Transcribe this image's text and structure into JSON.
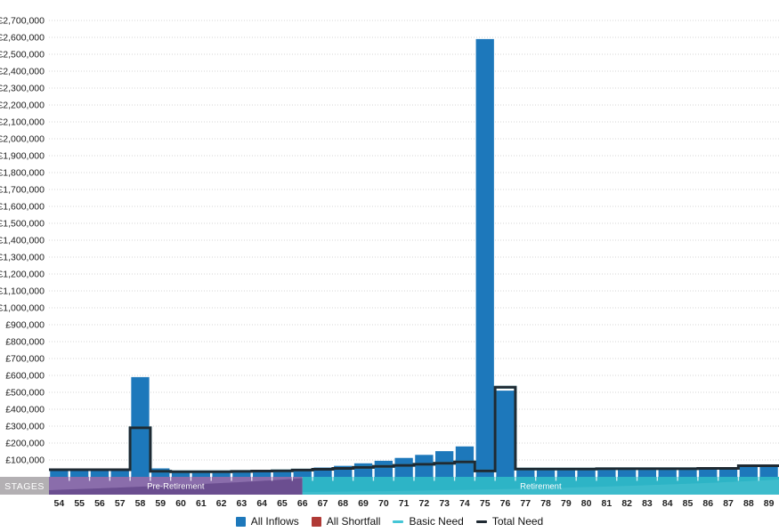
{
  "chart_data": {
    "type": "bar",
    "title": "",
    "x_label": "",
    "y_label": "",
    "x": [
      54,
      55,
      56,
      57,
      58,
      59,
      60,
      61,
      62,
      63,
      64,
      65,
      66,
      67,
      68,
      69,
      70,
      71,
      72,
      73,
      74,
      75,
      76,
      77,
      78,
      79,
      80,
      81,
      82,
      83,
      84,
      85,
      86,
      87,
      88,
      89
    ],
    "series": [
      {
        "name": "All Inflows",
        "type": "bar",
        "color": "#1d78bb",
        "values": [
          40000,
          40000,
          40000,
          40000,
          590000,
          50000,
          25000,
          25000,
          25000,
          27000,
          30000,
          34000,
          45000,
          55000,
          65000,
          80000,
          95000,
          112000,
          130000,
          152000,
          180000,
          2590000,
          510000,
          40000,
          40000,
          40000,
          40000,
          42000,
          42000,
          42000,
          44000,
          44000,
          46000,
          46000,
          60000,
          60000
        ]
      },
      {
        "name": "All Shortfall",
        "type": "bar",
        "color": "#b03a36",
        "values": [
          0,
          0,
          0,
          0,
          0,
          0,
          0,
          0,
          0,
          0,
          0,
          0,
          0,
          0,
          0,
          0,
          0,
          0,
          0,
          0,
          0,
          0,
          0,
          0,
          0,
          0,
          0,
          0,
          0,
          0,
          0,
          0,
          0,
          0,
          0,
          0
        ]
      },
      {
        "name": "Basic Need",
        "type": "step-line",
        "color": "#45c6d6",
        "values": [
          42000,
          42000,
          42000,
          42000,
          290000,
          33000,
          30000,
          30000,
          30000,
          32000,
          34000,
          36000,
          40000,
          45000,
          50000,
          56000,
          62000,
          68000,
          74000,
          80000,
          88000,
          35000,
          530000,
          46000,
          46000,
          46000,
          46000,
          48000,
          48000,
          48000,
          48000,
          48000,
          50000,
          50000,
          66000,
          66000
        ]
      },
      {
        "name": "Total Need",
        "type": "step-line",
        "color": "#1f2a33",
        "values": [
          42000,
          42000,
          42000,
          42000,
          290000,
          33000,
          30000,
          30000,
          30000,
          32000,
          34000,
          36000,
          40000,
          45000,
          50000,
          56000,
          62000,
          68000,
          74000,
          80000,
          88000,
          35000,
          530000,
          46000,
          46000,
          46000,
          46000,
          48000,
          48000,
          48000,
          48000,
          48000,
          50000,
          50000,
          66000,
          66000
        ]
      }
    ],
    "y_axis": {
      "min": 0,
      "max": 2700000,
      "step": 100000,
      "prefix": "£"
    },
    "grid": "horizontal-dotted",
    "legend_position": "bottom",
    "stages_header": "STAGES",
    "stages": [
      {
        "label": "Pre-Retirement",
        "from": 54,
        "to": 66.5,
        "color": "#8a6dab",
        "swoosh_color": "#6b4e90"
      },
      {
        "label": "Retirement",
        "from": 66.5,
        "to": 90,
        "color": "#2db4c6",
        "swoosh_color": "#4cc3d1"
      }
    ]
  },
  "legend": {
    "items": [
      {
        "label": "All Inflows",
        "marker": "square",
        "color": "#1d78bb"
      },
      {
        "label": "All Shortfall",
        "marker": "square",
        "color": "#b03a36"
      },
      {
        "label": "Basic Need",
        "marker": "dash",
        "color": "#45c6d6"
      },
      {
        "label": "Total Need",
        "marker": "dash",
        "color": "#1f2a33"
      }
    ]
  },
  "colors": {
    "gridline": "#d6d6d6",
    "y_label": "#1a1a1a",
    "x_label": "#222222",
    "stages_box_bg": "#b3b0b3",
    "stages_text": "#ffffff"
  }
}
